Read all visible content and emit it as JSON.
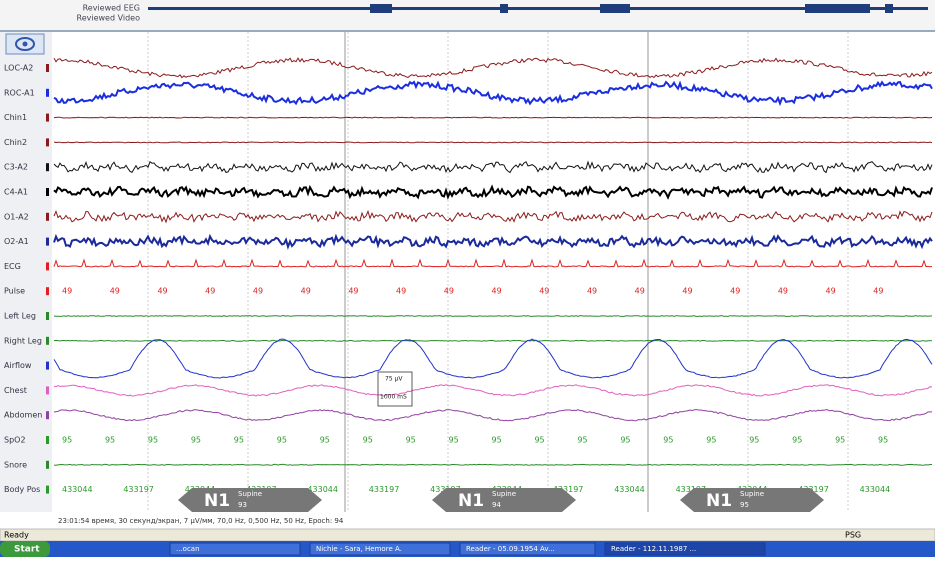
{
  "review_bar": {
    "labels": [
      "Reviewed EEG",
      "Reviewed Video"
    ]
  },
  "channels": [
    "LOC-A2",
    "ROC-A1",
    "Chin1",
    "Chin2",
    "C3-A2",
    "C4-A1",
    "O1-A2",
    "O2-A1",
    "ECG",
    "Pulse",
    "Left Leg",
    "Right Leg",
    "Airflow",
    "Chest",
    "Abdomen",
    "SpO2",
    "Snore",
    "Body Pos"
  ],
  "pulse_values": [
    "49",
    "49",
    "49",
    "49",
    "49",
    "49",
    "49",
    "49",
    "49",
    "49",
    "49",
    "49",
    "49",
    "49",
    "49",
    "49",
    "49",
    "49"
  ],
  "spo2_values": [
    "95",
    "95",
    "95",
    "95",
    "95",
    "95",
    "95",
    "95",
    "95",
    "95",
    "95",
    "95",
    "95",
    "95",
    "95",
    "95",
    "95",
    "95",
    "95",
    "95"
  ],
  "body_pos_values": [
    "433044",
    "433197",
    "433044",
    "433197",
    "433044",
    "433197",
    "433197",
    "433044",
    "433197",
    "433044",
    "433197",
    "433044",
    "433197",
    "433044"
  ],
  "epochs": [
    {
      "stage": "N1",
      "position": "Supine",
      "number": "93"
    },
    {
      "stage": "N1",
      "position": "Supine",
      "number": "94"
    },
    {
      "stage": "N1",
      "position": "Supine",
      "number": "95"
    }
  ],
  "scale_box": {
    "amplitude": "75 µV",
    "time": "1000 mS"
  },
  "status_line": "23:01:54 время, 30 секунд/экран, 7 µV/мм, 70,0 Hz, 0,500 Hz, 50 Hz, Epoch: 94",
  "status_bar": {
    "left": "Ready",
    "right": "PSG"
  },
  "taskbar": {
    "start": "Start",
    "items": [
      "...ocan",
      "Nichie - Sara, Hemore A.",
      "Reader - 05.09.1954 Av...",
      "Reader - 112.11.1987 ..."
    ]
  }
}
